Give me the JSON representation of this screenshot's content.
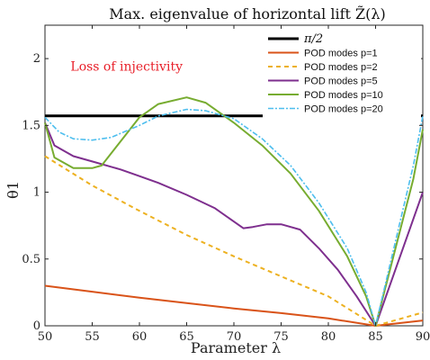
{
  "chart_data": {
    "type": "line",
    "title": "Max. eigenvalue of horizontal lift Z̃(λ)",
    "xlabel": "Parameter λ",
    "ylabel": "θ1",
    "xlim": [
      50,
      90
    ],
    "ylim": [
      0,
      2.25
    ],
    "xticks": [
      "50",
      "55",
      "60",
      "65",
      "70",
      "75",
      "80",
      "85",
      "90"
    ],
    "xtick_values": [
      50,
      55,
      60,
      65,
      70,
      75,
      80,
      85,
      90
    ],
    "yticks": [
      "0",
      "0.5",
      "1",
      "1.5",
      "2"
    ],
    "ytick_values": [
      0,
      0.5,
      1,
      1.5,
      2
    ],
    "grid": false,
    "legend_position": "top-right",
    "annotation": {
      "text": "Loss of injectivity",
      "color": "#e8202a",
      "x": 50.8,
      "y": 1.91
    },
    "series": [
      {
        "name": "π/2",
        "color": "#000000",
        "dash": "",
        "width": 3,
        "x": [
          50,
          90
        ],
        "y": [
          1.571,
          1.571
        ]
      },
      {
        "name": "POD modes p=1",
        "color": "#d95319",
        "dash": "",
        "width": 2,
        "x": [
          50,
          55,
          60,
          65,
          70,
          75,
          80,
          85,
          90
        ],
        "y": [
          0.3,
          0.255,
          0.21,
          0.17,
          0.13,
          0.095,
          0.055,
          0.0,
          0.04
        ]
      },
      {
        "name": "POD modes p=2",
        "color": "#edb120",
        "dash": "5,4",
        "width": 2,
        "x": [
          50,
          55,
          60,
          65,
          70,
          75,
          80,
          85,
          87.5,
          90
        ],
        "y": [
          1.27,
          1.05,
          0.86,
          0.68,
          0.52,
          0.37,
          0.22,
          0.0,
          0.05,
          0.1
        ]
      },
      {
        "name": "POD modes p=5",
        "color": "#7e2f8e",
        "dash": "",
        "width": 2,
        "x": [
          50,
          51,
          53,
          55,
          58,
          60,
          62,
          65,
          68,
          70,
          71,
          72,
          73.5,
          75,
          77,
          79,
          81,
          83,
          85,
          87,
          90
        ],
        "y": [
          1.52,
          1.35,
          1.27,
          1.23,
          1.17,
          1.12,
          1.07,
          0.98,
          0.88,
          0.78,
          0.73,
          0.74,
          0.76,
          0.76,
          0.72,
          0.58,
          0.42,
          0.22,
          0.0,
          0.4,
          1.0
        ]
      },
      {
        "name": "POD modes p=10",
        "color": "#77ac30",
        "dash": "",
        "width": 2,
        "x": [
          50,
          51,
          53,
          55,
          56,
          58,
          60,
          62,
          65,
          67,
          70,
          73,
          76,
          79,
          82,
          84,
          85,
          87,
          89,
          90
        ],
        "y": [
          1.52,
          1.26,
          1.18,
          1.18,
          1.2,
          1.38,
          1.56,
          1.66,
          1.71,
          1.67,
          1.52,
          1.35,
          1.14,
          0.86,
          0.52,
          0.22,
          0.0,
          0.55,
          1.1,
          1.47
        ]
      },
      {
        "name": "POD modes p=20",
        "color": "#4dbeee",
        "dash": "6,2,2,2",
        "width": 1.6,
        "x": [
          50,
          51.5,
          53,
          55,
          57,
          60,
          62,
          65,
          67,
          70,
          73,
          76,
          79,
          82,
          84,
          85,
          87,
          89,
          90
        ],
        "y": [
          1.56,
          1.45,
          1.4,
          1.39,
          1.41,
          1.5,
          1.57,
          1.62,
          1.61,
          1.55,
          1.4,
          1.2,
          0.92,
          0.58,
          0.25,
          0.0,
          0.6,
          1.2,
          1.57
        ]
      }
    ]
  }
}
